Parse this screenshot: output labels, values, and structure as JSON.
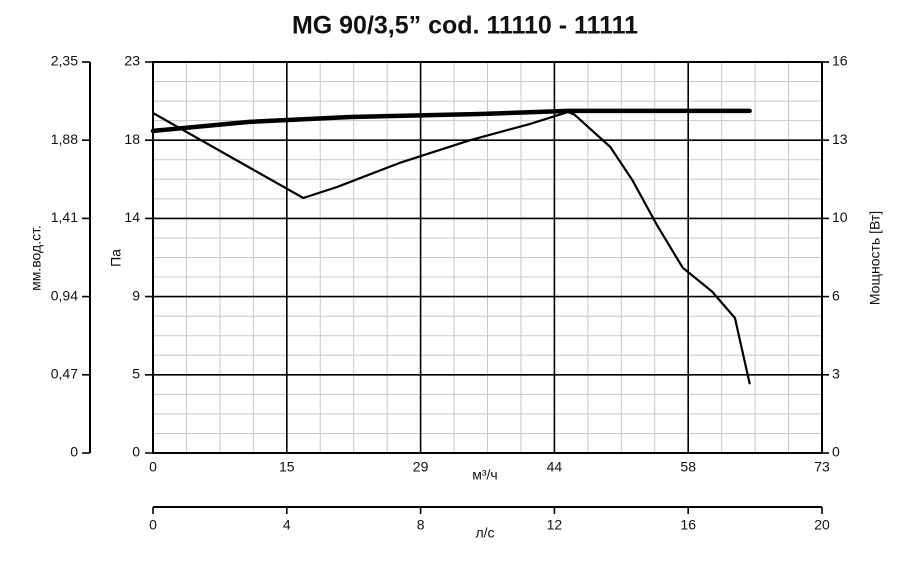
{
  "chart_data": {
    "type": "line",
    "title": "MG 90/3,5” cod. 11110 - 11111",
    "ylabel": "Па",
    "ylim": [
      0,
      23
    ],
    "yticks": [
      0,
      {
        "value": 4.6,
        "label": "5"
      },
      {
        "value": 9.2,
        "label": "9"
      },
      {
        "value": 13.8,
        "label": "14"
      },
      {
        "value": 18.4,
        "label": "18"
      },
      23
    ],
    "y2label": "Мощность [Вт]",
    "y2lim": [
      0,
      16
    ],
    "y2ticks": [
      0,
      {
        "value": 3.2,
        "label": "3"
      },
      {
        "value": 6.4,
        "label": "6"
      },
      {
        "value": 9.6,
        "label": "10"
      },
      {
        "value": 12.8,
        "label": "13"
      },
      16
    ],
    "y3label": "мм.вод.ст.",
    "y3lim": [
      0,
      2.35
    ],
    "y3ticks": [
      0,
      {
        "value": 0.47,
        "label": "0,47"
      },
      {
        "value": 0.94,
        "label": "0,94"
      },
      {
        "value": 1.41,
        "label": "1,41"
      },
      {
        "value": 1.88,
        "label": "1,88"
      },
      {
        "value": 2.35,
        "label": "2,35"
      }
    ],
    "xlabel": "м³/ч",
    "xlim": [
      0,
      73
    ],
    "xticks": [
      0,
      {
        "value": 14.6,
        "label": "15"
      },
      {
        "value": 29.2,
        "label": "29"
      },
      {
        "value": 43.8,
        "label": "44"
      },
      {
        "value": 58.4,
        "label": "58"
      },
      73
    ],
    "x2label": "л/с",
    "x2lim": [
      0,
      20
    ],
    "x2ticks": [
      0,
      4,
      8,
      12,
      16,
      20
    ],
    "grid": true,
    "series": [
      {
        "color": "#000000",
        "x": [
          0,
          16.4,
          20.1,
          26.9,
          34.6,
          41.1,
          45.3,
          46.0,
          49.9,
          52.3,
          55.0,
          57.8,
          61.0,
          63.5,
          65.1
        ],
        "values": [
          20.0,
          15.0,
          15.65,
          17.06,
          18.4,
          19.35,
          20.06,
          19.9,
          18.0,
          16.06,
          13.4,
          10.9,
          9.5,
          7.94,
          4.1
        ]
      },
      {
        "color": "#000000",
        "axis": "y2",
        "x": [
          0,
          10.5,
          21.5,
          35.7,
          45.3,
          65.1
        ],
        "values": [
          13.18,
          13.55,
          13.75,
          13.87,
          14.0,
          14.0
        ]
      }
    ]
  }
}
